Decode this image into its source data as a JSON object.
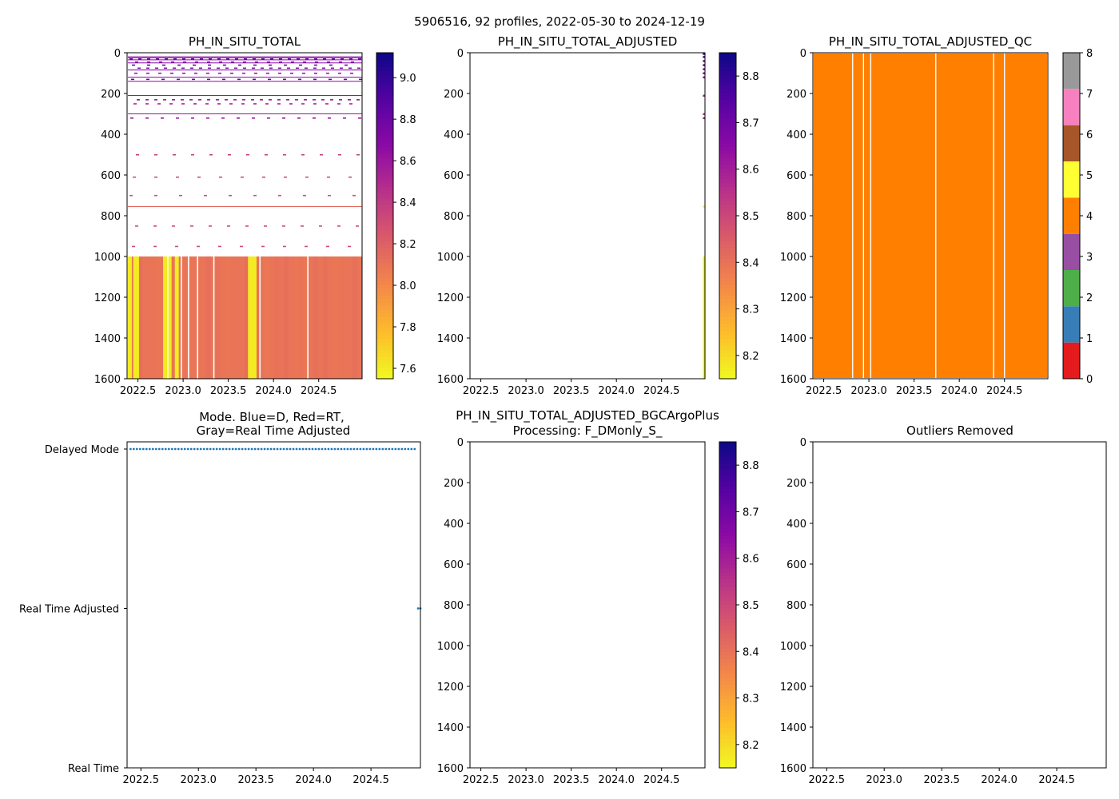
{
  "figure_title": "5906516, 92 profiles, 2022-05-30 to 2024-12-19",
  "chart_data": [
    {
      "id": "ph-raw",
      "type": "heatmap",
      "title": "PH_IN_SITU_TOTAL",
      "xticks": [
        2022.5,
        2023.0,
        2023.5,
        2024.0,
        2024.5
      ],
      "xtick_labels": [
        "2022.5",
        "2023.0",
        "2023.5",
        "2024.0",
        "2024.5"
      ],
      "xlim": [
        2022.38,
        2024.98
      ],
      "yticks": [
        0,
        200,
        400,
        600,
        800,
        1000,
        1200,
        1400,
        1600
      ],
      "ytick_labels": [
        "0",
        "200",
        "400",
        "600",
        "800",
        "1000",
        "1200",
        "1400",
        "1600"
      ],
      "ylim": [
        1600,
        0
      ],
      "colormap": "plasma_r",
      "colorbar_range": [
        7.55,
        9.12
      ],
      "colorbar_ticks": [
        7.6,
        7.8,
        8.0,
        8.2,
        8.4,
        8.6,
        8.8,
        9.0
      ],
      "colorbar_tick_labels": [
        "7.6",
        "7.8",
        "8.0",
        "8.2",
        "8.4",
        "8.6",
        "8.8",
        "9.0"
      ],
      "deep_layer_depth_range": [
        1000,
        1600
      ],
      "deep_layer_typical_value": 8.1,
      "low_value_profiles": [
        2022.41,
        2022.47,
        2022.49,
        2022.8,
        2022.85,
        2022.93,
        2023.74,
        2023.77,
        2023.79
      ],
      "gap_profiles": [
        2022.83,
        2022.98,
        2023.06,
        2023.16,
        2023.34,
        2023.85,
        2024.38
      ]
    },
    {
      "id": "ph-adjusted",
      "type": "heatmap",
      "title": "PH_IN_SITU_TOTAL_ADJUSTED",
      "xticks": [
        2022.5,
        2023.0,
        2023.5,
        2024.0,
        2024.5
      ],
      "xtick_labels": [
        "2022.5",
        "2023.0",
        "2023.5",
        "2024.0",
        "2024.5"
      ],
      "xlim": [
        2022.38,
        2024.98
      ],
      "yticks": [
        0,
        200,
        400,
        600,
        800,
        1000,
        1200,
        1400,
        1600
      ],
      "ytick_labels": [
        "0",
        "200",
        "400",
        "600",
        "800",
        "1000",
        "1200",
        "1400",
        "1600"
      ],
      "ylim": [
        1600,
        0
      ],
      "colormap": "plasma_r",
      "colorbar_range": [
        8.15,
        8.85
      ],
      "colorbar_ticks": [
        8.2,
        8.3,
        8.4,
        8.5,
        8.6,
        8.7,
        8.8
      ],
      "colorbar_tick_labels": [
        "8.2",
        "8.3",
        "8.4",
        "8.5",
        "8.6",
        "8.7",
        "8.8"
      ],
      "data_profile": 2024.97,
      "data_note": "only the last profile holds adjusted values"
    },
    {
      "id": "ph-adjusted-qc",
      "type": "heatmap",
      "title": "PH_IN_SITU_TOTAL_ADJUSTED_QC",
      "xticks": [
        2022.5,
        2023.0,
        2023.5,
        2024.0,
        2024.5
      ],
      "xtick_labels": [
        "2022.5",
        "2023.0",
        "2023.5",
        "2024.0",
        "2024.5"
      ],
      "xlim": [
        2022.38,
        2024.98
      ],
      "yticks": [
        0,
        200,
        400,
        600,
        800,
        1000,
        1200,
        1400,
        1600
      ],
      "ytick_labels": [
        "0",
        "200",
        "400",
        "600",
        "800",
        "1000",
        "1200",
        "1400",
        "1600"
      ],
      "ylim": [
        1600,
        0
      ],
      "dominant_qc_flag": 4,
      "gap_profiles": [
        2022.82,
        2022.94,
        2023.02,
        2023.74,
        2024.38,
        2024.5
      ],
      "colorbar_range": [
        0,
        8
      ],
      "colorbar_ticks": [
        0,
        1,
        2,
        3,
        4,
        5,
        6,
        7,
        8
      ],
      "colorbar_tick_labels": [
        "0",
        "1",
        "2",
        "3",
        "4",
        "5",
        "6",
        "7",
        "8"
      ],
      "qc_colors": [
        "#e41a1c",
        "#377eb8",
        "#4daf4a",
        "#984ea3",
        "#ff7f00",
        "#ffff33",
        "#a65628",
        "#f781bf",
        "#999999"
      ]
    },
    {
      "id": "mode",
      "type": "scatter",
      "title_lines": [
        "Mode. Blue=D, Red=RT,",
        "Gray=Real Time Adjusted"
      ],
      "xticks": [
        2022.5,
        2023.0,
        2023.5,
        2024.0,
        2024.5
      ],
      "xtick_labels": [
        "2022.5",
        "2023.0",
        "2023.5",
        "2024.0",
        "2024.5"
      ],
      "xlim": [
        2022.38,
        2024.93
      ],
      "y_categories": [
        "Real Time",
        "Real Time Adjusted",
        "Delayed Mode"
      ],
      "marker_color": "#1f77b4",
      "delayed_mode_range": [
        2022.41,
        2024.88
      ],
      "delayed_mode_count": 90,
      "real_time_adjusted_x": [
        2024.91,
        2024.93
      ]
    },
    {
      "id": "ph-bgcargoplus",
      "type": "heatmap",
      "title_lines": [
        "PH_IN_SITU_TOTAL_ADJUSTED_BGCArgoPlus",
        "Processing: F_DMonly_S_"
      ],
      "xticks": [
        2022.5,
        2023.0,
        2023.5,
        2024.0,
        2024.5
      ],
      "xtick_labels": [
        "2022.5",
        "2023.0",
        "2023.5",
        "2024.0",
        "2024.5"
      ],
      "xlim": [
        2022.38,
        2024.98
      ],
      "yticks": [
        0,
        200,
        400,
        600,
        800,
        1000,
        1200,
        1400,
        1600
      ],
      "ytick_labels": [
        "0",
        "200",
        "400",
        "600",
        "800",
        "1000",
        "1200",
        "1400",
        "1600"
      ],
      "ylim": [
        1600,
        0
      ],
      "colormap": "plasma_r",
      "colorbar_range": [
        8.15,
        8.85
      ],
      "colorbar_ticks": [
        8.2,
        8.3,
        8.4,
        8.5,
        8.6,
        8.7,
        8.8
      ],
      "colorbar_tick_labels": [
        "8.2",
        "8.3",
        "8.4",
        "8.5",
        "8.6",
        "8.7",
        "8.8"
      ],
      "data_note": "empty"
    },
    {
      "id": "outliers",
      "type": "scatter",
      "title": "Outliers Removed",
      "xticks": [
        2022.5,
        2023.0,
        2023.5,
        2024.0,
        2024.5
      ],
      "xtick_labels": [
        "2022.5",
        "2023.0",
        "2023.5",
        "2024.0",
        "2024.5"
      ],
      "xlim": [
        2022.38,
        2024.93
      ],
      "yticks": [
        0,
        200,
        400,
        600,
        800,
        1000,
        1200,
        1400,
        1600
      ],
      "ytick_labels": [
        "0",
        "200",
        "400",
        "600",
        "800",
        "1000",
        "1200",
        "1400",
        "1600"
      ],
      "ylim": [
        1600,
        0
      ],
      "data_note": "empty"
    }
  ]
}
